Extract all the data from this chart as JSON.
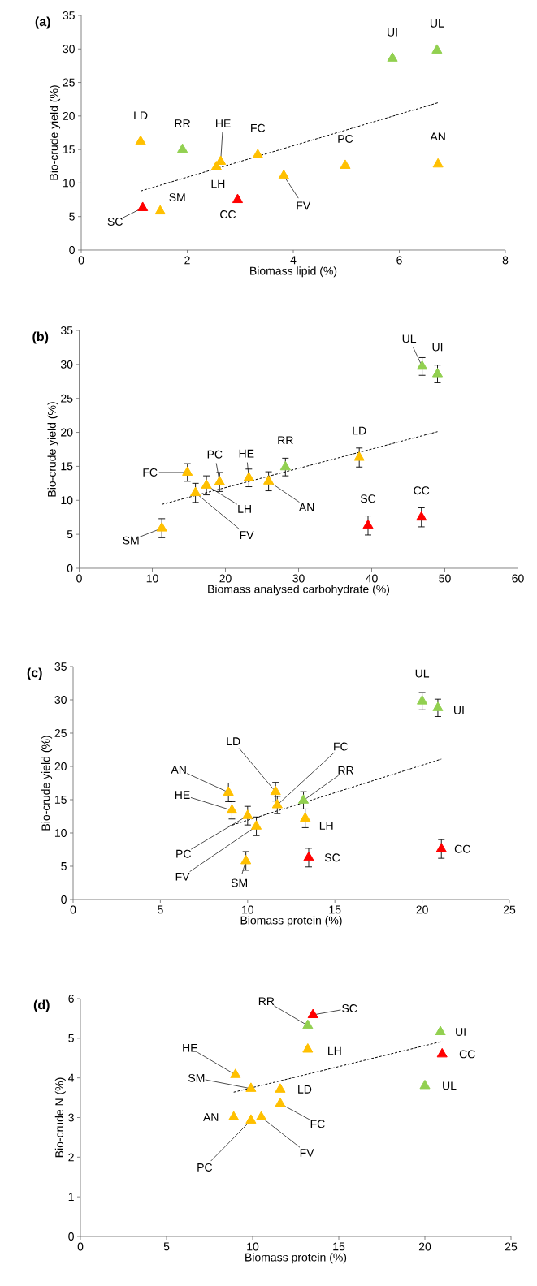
{
  "chart_data": [
    {
      "type": "scatter",
      "title": "(a)",
      "xlabel": "Biomass lipid (%)",
      "ylabel": "Bio-crude yield (%)",
      "xlim": [
        0,
        8
      ],
      "xticks": [
        0,
        2,
        4,
        6,
        8
      ],
      "ylim": [
        0,
        35
      ],
      "yticks": [
        0,
        5,
        10,
        15,
        20,
        25,
        30,
        35
      ],
      "marker": "triangle",
      "series": [
        {
          "color": "#ffc000",
          "x": [
            1.12,
            2.63,
            2.55,
            3.33,
            3.82,
            4.98,
            6.73,
            1.49
          ],
          "values": [
            16.2,
            13.2,
            12.4,
            14.2,
            11.1,
            12.6,
            12.8,
            5.8
          ]
        },
        {
          "color": "#92d050",
          "x": [
            1.91,
            5.87,
            6.71
          ],
          "values": [
            15.0,
            28.6,
            29.8
          ]
        },
        {
          "color": "#ff0000",
          "x": [
            1.16,
            2.95
          ],
          "values": [
            6.3,
            7.5
          ]
        },
        {
          "type": "line",
          "line_style": "dashed",
          "marker": "none",
          "color": "#000000",
          "x": [
            1.12,
            6.74
          ],
          "values": [
            8.8,
            22.0
          ]
        }
      ],
      "annotations": [
        {
          "text": "UI",
          "x": 5.87,
          "y": 28.6
        },
        {
          "text": "UL",
          "x": 6.71,
          "y": 29.8
        },
        {
          "text": "LD",
          "x": 1.12,
          "y": 16.2
        },
        {
          "text": "RR",
          "x": 1.91,
          "y": 15.0
        },
        {
          "text": "HE",
          "x": 2.63,
          "y": 13.2
        },
        {
          "text": "FC",
          "x": 3.33,
          "y": 14.2
        },
        {
          "text": "PC",
          "x": 4.98,
          "y": 12.6
        },
        {
          "text": "AN",
          "x": 6.73,
          "y": 12.8
        },
        {
          "text": "LH",
          "x": 2.55,
          "y": 12.4
        },
        {
          "text": "FV",
          "x": 3.82,
          "y": 11.1
        },
        {
          "text": "CC",
          "x": 2.95,
          "y": 7.5
        },
        {
          "text": "SM",
          "x": 1.49,
          "y": 5.8
        },
        {
          "text": "SC",
          "x": 1.16,
          "y": 6.3
        }
      ]
    },
    {
      "type": "scatter",
      "title": "(b)",
      "xlabel": "Biomass analysed carbohydrate (%)",
      "ylabel": "Bio-crude yield (%)",
      "xlim": [
        0,
        60
      ],
      "xticks": [
        0,
        10,
        20,
        30,
        40,
        50,
        60
      ],
      "ylim": [
        0,
        35
      ],
      "yticks": [
        0,
        5,
        10,
        15,
        20,
        25,
        30,
        35
      ],
      "marker": "triangle",
      "series": [
        {
          "color": "#ffc000",
          "x": [
            11.3,
            14.8,
            15.9,
            17.4,
            19.2,
            23.2,
            25.9,
            38.3
          ],
          "values": [
            5.9,
            14.1,
            11.1,
            12.2,
            12.7,
            13.3,
            12.8,
            16.3
          ],
          "errors": [
            1.4,
            1.3,
            1.4,
            1.4,
            1.4,
            1.3,
            1.4,
            1.4
          ]
        },
        {
          "color": "#92d050",
          "x": [
            28.2,
            46.9,
            49.0
          ],
          "values": [
            14.9,
            29.7,
            28.6
          ],
          "errors": [
            1.3,
            1.3,
            1.3
          ]
        },
        {
          "color": "#ff0000",
          "x": [
            39.5,
            46.8
          ],
          "values": [
            6.3,
            7.5
          ],
          "errors": [
            1.4,
            1.4
          ]
        },
        {
          "type": "line",
          "line_style": "dashed",
          "marker": "none",
          "color": "#000000",
          "x": [
            11.3,
            49.0
          ],
          "values": [
            9.4,
            20.1
          ]
        }
      ],
      "annotations": [
        {
          "text": "UL",
          "x": 46.9,
          "y": 29.7
        },
        {
          "text": "UI",
          "x": 49.0,
          "y": 28.6
        },
        {
          "text": "LD",
          "x": 38.3,
          "y": 16.3
        },
        {
          "text": "RR",
          "x": 28.2,
          "y": 14.9
        },
        {
          "text": "HE",
          "x": 23.2,
          "y": 13.3
        },
        {
          "text": "PC",
          "x": 19.2,
          "y": 12.7
        },
        {
          "text": "FC",
          "x": 14.8,
          "y": 14.1
        },
        {
          "text": "LH",
          "x": 17.4,
          "y": 12.2
        },
        {
          "text": "AN",
          "x": 25.9,
          "y": 12.8
        },
        {
          "text": "FV",
          "x": 15.9,
          "y": 11.1
        },
        {
          "text": "SM",
          "x": 11.3,
          "y": 5.9
        },
        {
          "text": "SC",
          "x": 39.5,
          "y": 6.3
        },
        {
          "text": "CC",
          "x": 46.8,
          "y": 7.5
        }
      ]
    },
    {
      "type": "scatter",
      "title": "(c)",
      "xlabel": "Biomass protein (%)",
      "ylabel": "Bio-crude yield (%)",
      "xlim": [
        0,
        25
      ],
      "xticks": [
        0,
        5,
        10,
        15,
        20,
        25
      ],
      "ylim": [
        0,
        35
      ],
      "yticks": [
        0,
        5,
        10,
        15,
        20,
        25,
        30,
        35
      ],
      "marker": "triangle",
      "series": [
        {
          "color": "#ffc000",
          "x": [
            8.9,
            9.1,
            10.0,
            10.5,
            9.9,
            11.6,
            11.7,
            13.3
          ],
          "values": [
            16.1,
            13.4,
            12.6,
            11.0,
            5.8,
            16.2,
            14.2,
            12.2
          ],
          "errors": [
            1.4,
            1.3,
            1.4,
            1.4,
            1.4,
            1.4,
            1.3,
            1.4
          ]
        },
        {
          "color": "#92d050",
          "x": [
            13.2,
            20.0,
            20.9
          ],
          "values": [
            14.9,
            29.8,
            28.8
          ],
          "errors": [
            1.3,
            1.3,
            1.3
          ]
        },
        {
          "color": "#ff0000",
          "x": [
            13.5,
            21.1
          ],
          "values": [
            6.3,
            7.6
          ],
          "errors": [
            1.4,
            1.4
          ]
        },
        {
          "type": "line",
          "line_style": "dashed",
          "marker": "none",
          "color": "#000000",
          "x": [
            8.9,
            21.1
          ],
          "values": [
            11.0,
            21.1
          ]
        }
      ],
      "annotations": [
        {
          "text": "UL",
          "x": 20.0,
          "y": 29.8
        },
        {
          "text": "UI",
          "x": 20.9,
          "y": 28.8
        },
        {
          "text": "LD",
          "x": 11.6,
          "y": 16.2
        },
        {
          "text": "FC",
          "x": 11.7,
          "y": 14.2
        },
        {
          "text": "RR",
          "x": 13.2,
          "y": 14.9
        },
        {
          "text": "AN",
          "x": 8.9,
          "y": 16.1
        },
        {
          "text": "HE",
          "x": 9.1,
          "y": 13.4
        },
        {
          "text": "LH",
          "x": 13.3,
          "y": 12.2
        },
        {
          "text": "PC",
          "x": 10.0,
          "y": 12.6
        },
        {
          "text": "FV",
          "x": 10.5,
          "y": 11.0
        },
        {
          "text": "SM",
          "x": 9.9,
          "y": 5.8
        },
        {
          "text": "SC",
          "x": 13.5,
          "y": 6.3
        },
        {
          "text": "CC",
          "x": 21.1,
          "y": 7.6
        }
      ]
    },
    {
      "type": "scatter",
      "title": "(d)",
      "xlabel": "Biomass protein (%)",
      "ylabel": "Bio-crude N (%)",
      "xlim": [
        0,
        25
      ],
      "xticks": [
        0,
        5,
        10,
        15,
        20,
        25
      ],
      "ylim": [
        0,
        6
      ],
      "yticks": [
        0,
        1,
        2,
        3,
        4,
        5,
        6
      ],
      "marker": "triangle",
      "series": [
        {
          "color": "#ffc000",
          "x": [
            9.0,
            9.9,
            11.6,
            11.6,
            8.9,
            9.9,
            10.5,
            13.2
          ],
          "values": [
            4.08,
            3.73,
            3.71,
            3.35,
            3.01,
            2.93,
            3.01,
            4.72
          ]
        },
        {
          "color": "#92d050",
          "x": [
            13.2,
            20.9,
            20.0
          ],
          "values": [
            5.32,
            5.16,
            3.8
          ]
        },
        {
          "color": "#ff0000",
          "x": [
            13.5,
            21.0
          ],
          "values": [
            5.59,
            4.6
          ]
        },
        {
          "type": "line",
          "line_style": "dashed",
          "marker": "none",
          "color": "#000000",
          "x": [
            8.9,
            21.0
          ],
          "values": [
            3.64,
            4.92
          ]
        }
      ],
      "annotations": [
        {
          "text": "RR",
          "x": 13.2,
          "y": 5.32
        },
        {
          "text": "SC",
          "x": 13.5,
          "y": 5.59
        },
        {
          "text": "LH",
          "x": 13.2,
          "y": 4.72
        },
        {
          "text": "UI",
          "x": 20.9,
          "y": 5.16
        },
        {
          "text": "CC",
          "x": 21.0,
          "y": 4.6
        },
        {
          "text": "UL",
          "x": 20.0,
          "y": 3.8
        },
        {
          "text": "HE",
          "x": 9.0,
          "y": 4.08
        },
        {
          "text": "SM",
          "x": 9.9,
          "y": 3.73
        },
        {
          "text": "LD",
          "x": 11.6,
          "y": 3.71
        },
        {
          "text": "FC",
          "x": 11.6,
          "y": 3.35
        },
        {
          "text": "AN",
          "x": 8.9,
          "y": 3.01
        },
        {
          "text": "PC",
          "x": 9.9,
          "y": 2.93
        },
        {
          "text": "FV",
          "x": 10.5,
          "y": 3.01
        }
      ]
    }
  ]
}
